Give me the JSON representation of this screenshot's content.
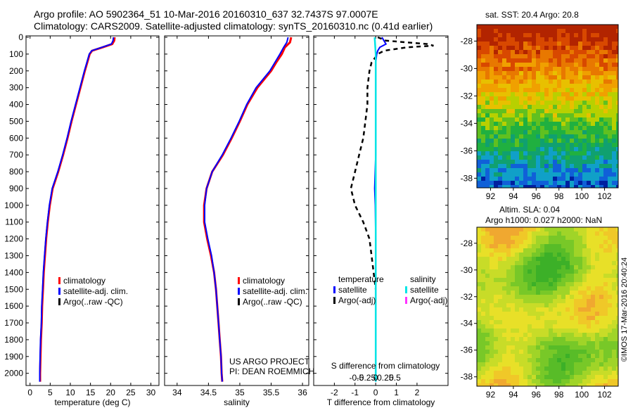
{
  "header": {
    "line1": "Argo profile: AO 5902364_51 10-Mar-2016 20160310_637 32.7437S 97.0007E",
    "line2": "Climatology: CARS2009. Satellite-adjusted climatology: synTS_20160310.nc (0.41d earlier)"
  },
  "colors": {
    "climatology": "#ff0000",
    "satellite": "#0000ff",
    "argo": "#000000",
    "sal_satellite": "#00e5e5",
    "sal_argo": "#ff33ff"
  },
  "depth_axis": {
    "ticks": [
      0,
      100,
      200,
      300,
      400,
      500,
      600,
      700,
      800,
      900,
      1000,
      1100,
      1200,
      1300,
      1400,
      1500,
      1600,
      1700,
      1800,
      1900,
      2000
    ],
    "ylim": [
      0,
      2060
    ]
  },
  "chart_data": [
    {
      "type": "line",
      "name": "temperature-panel",
      "xlabel": "temperature (deg C)",
      "xlim": [
        -1,
        32
      ],
      "xticks": [
        0,
        5,
        10,
        15,
        20,
        25,
        30
      ],
      "legend": [
        "climatology",
        "satellite-adj. clim.",
        "Argo(..raw -QC)"
      ],
      "series": [
        {
          "name": "climatology",
          "depth": [
            0,
            20,
            40,
            60,
            80,
            100,
            150,
            200,
            300,
            400,
            500,
            600,
            700,
            800,
            900,
            1000,
            1100,
            1200,
            1300,
            1400,
            1500,
            1600,
            1700,
            1800,
            1900,
            2000,
            2050
          ],
          "values": [
            21.0,
            20.9,
            20.4,
            18.0,
            15.4,
            14.8,
            14.2,
            13.6,
            12.5,
            11.4,
            10.3,
            9.3,
            8.2,
            7.0,
            5.6,
            4.9,
            4.4,
            4.0,
            3.7,
            3.4,
            3.2,
            3.0,
            2.9,
            2.7,
            2.6,
            2.5,
            2.5
          ]
        },
        {
          "name": "satellite-adj. clim.",
          "depth": [
            0,
            20,
            40,
            60,
            80,
            100,
            150,
            200,
            300,
            400,
            500,
            600,
            700,
            800,
            900,
            1000,
            1100,
            1200,
            1300,
            1400,
            1500,
            1600,
            1700,
            1800,
            1900,
            2000,
            2050
          ],
          "values": [
            20.7,
            20.6,
            20.2,
            17.8,
            15.3,
            14.7,
            14.1,
            13.5,
            12.4,
            11.3,
            10.2,
            9.2,
            8.1,
            6.9,
            5.5,
            4.8,
            4.3,
            3.9,
            3.6,
            3.3,
            3.1,
            2.9,
            2.8,
            2.6,
            2.5,
            2.4,
            2.4
          ]
        }
      ]
    },
    {
      "type": "line",
      "name": "salinity-panel",
      "xlabel": "salinity",
      "xlim": [
        33.8,
        36.1
      ],
      "xticks": [
        34,
        34.5,
        35,
        35.5,
        36
      ],
      "xtick_labels": [
        "34",
        "34.5",
        "35",
        "35.5",
        "36"
      ],
      "legend": [
        "climatology",
        "satellite-adj. clim.",
        "Argo(..raw -QC)"
      ],
      "annotation": [
        "US ARGO PROJECT",
        "PI: DEAN ROEMMICH"
      ],
      "series": [
        {
          "name": "climatology",
          "depth": [
            0,
            30,
            60,
            100,
            150,
            200,
            300,
            400,
            500,
            600,
            700,
            800,
            900,
            1000,
            1100,
            1200,
            1300,
            1400,
            1500,
            1600,
            1700,
            1800,
            1900,
            2000,
            2050
          ],
          "values": [
            35.82,
            35.8,
            35.72,
            35.67,
            35.58,
            35.5,
            35.28,
            35.12,
            35.0,
            34.87,
            34.73,
            34.56,
            34.47,
            34.43,
            34.43,
            34.48,
            34.54,
            34.59,
            34.62,
            34.64,
            34.66,
            34.68,
            34.7,
            34.71,
            34.72
          ]
        },
        {
          "name": "satellite-adj. clim.",
          "depth": [
            0,
            30,
            60,
            100,
            150,
            200,
            300,
            400,
            500,
            600,
            700,
            800,
            900,
            1000,
            1100,
            1200,
            1300,
            1400,
            1500,
            1600,
            1700,
            1800,
            1900,
            2000,
            2050
          ],
          "values": [
            35.77,
            35.75,
            35.7,
            35.64,
            35.56,
            35.48,
            35.26,
            35.11,
            34.99,
            34.86,
            34.72,
            34.56,
            34.47,
            34.44,
            34.44,
            34.49,
            34.55,
            34.59,
            34.62,
            34.64,
            34.66,
            34.68,
            34.7,
            34.71,
            34.72
          ]
        }
      ]
    },
    {
      "type": "line",
      "name": "difference-panel",
      "xlabel": "T difference from climatology",
      "xlabel2": "S difference from climatology",
      "xlim": [
        -3,
        3.5
      ],
      "xticks": [
        -2,
        -1,
        0,
        1,
        2
      ],
      "sticks": [
        -0.5,
        -0.25,
        0,
        0.25,
        0.5
      ],
      "stick_labels": [
        "-0.5",
        "-0.25",
        "0",
        "0.25",
        "0.5"
      ],
      "legend": {
        "temperature_title": "temperature",
        "salinity_title": "salinity",
        "t_items": [
          "satellite",
          "Argo(-adj)"
        ],
        "s_items": [
          "satellite",
          "Argo(-adj)"
        ]
      },
      "series": [
        {
          "name": "temperature Argo(-adj)",
          "depth": [
            0,
            20,
            40,
            50,
            60,
            80,
            100,
            150,
            200,
            300,
            400,
            500,
            600,
            700,
            800,
            900,
            1000,
            1100,
            1200,
            1300,
            1400,
            1500
          ],
          "values": [
            0.1,
            0.5,
            2.5,
            2.8,
            1.5,
            0.4,
            0.1,
            -0.2,
            -0.3,
            -0.4,
            -0.4,
            -0.5,
            -0.6,
            -0.8,
            -1.0,
            -1.2,
            -1.0,
            -0.6,
            -0.3,
            -0.2,
            -0.1,
            0.0
          ]
        },
        {
          "name": "temperature satellite",
          "depth": [
            0,
            20,
            40,
            60,
            80,
            100,
            150,
            200,
            300,
            400,
            500,
            700,
            900,
            1000,
            1200,
            1400,
            1600,
            1800,
            2000,
            2050
          ],
          "values": [
            0.3,
            0.4,
            0.5,
            0.2,
            0.1,
            0.05,
            0.0,
            0.0,
            0.0,
            0.0,
            0.0,
            0.0,
            -0.05,
            -0.02,
            0.0,
            0.0,
            0.0,
            0.0,
            0.0,
            0.0
          ]
        },
        {
          "name": "salinity satellite",
          "depth": [
            0,
            20,
            40,
            60,
            80,
            100,
            200,
            400,
            600,
            800,
            1000,
            1200,
            1400,
            1600,
            1800,
            2000,
            2050
          ],
          "values": [
            -0.05,
            -0.04,
            -0.03,
            -0.02,
            -0.01,
            0.0,
            0.0,
            0.0,
            0.0,
            0.0,
            0.0,
            0.0,
            0.0,
            0.0,
            0.0,
            0.0,
            0.0
          ]
        }
      ]
    },
    {
      "type": "heatmap",
      "name": "sst-map",
      "title": "sat. SST: 20.4  Argo: 20.8",
      "xticks": [
        92,
        94,
        96,
        98,
        100,
        102
      ],
      "yticks": [
        -28,
        -30,
        -32,
        -34,
        -36,
        -38
      ],
      "xlim": [
        90.8,
        103.2
      ],
      "ylim": [
        -38.7,
        -26.8
      ]
    },
    {
      "type": "heatmap",
      "name": "sla-map",
      "title_line1": "Altim. SLA: 0.04",
      "title_line2": "Argo h1000: 0.027  h2000: NaN",
      "xticks": [
        92,
        94,
        96,
        98,
        100,
        102
      ],
      "yticks": [
        -28,
        -30,
        -32,
        -34,
        -36,
        -38
      ],
      "xlim": [
        90.8,
        103.2
      ],
      "ylim": [
        -38.7,
        -26.8
      ]
    }
  ],
  "credit": "©IMOS 17-Mar-2016 20:40:24"
}
